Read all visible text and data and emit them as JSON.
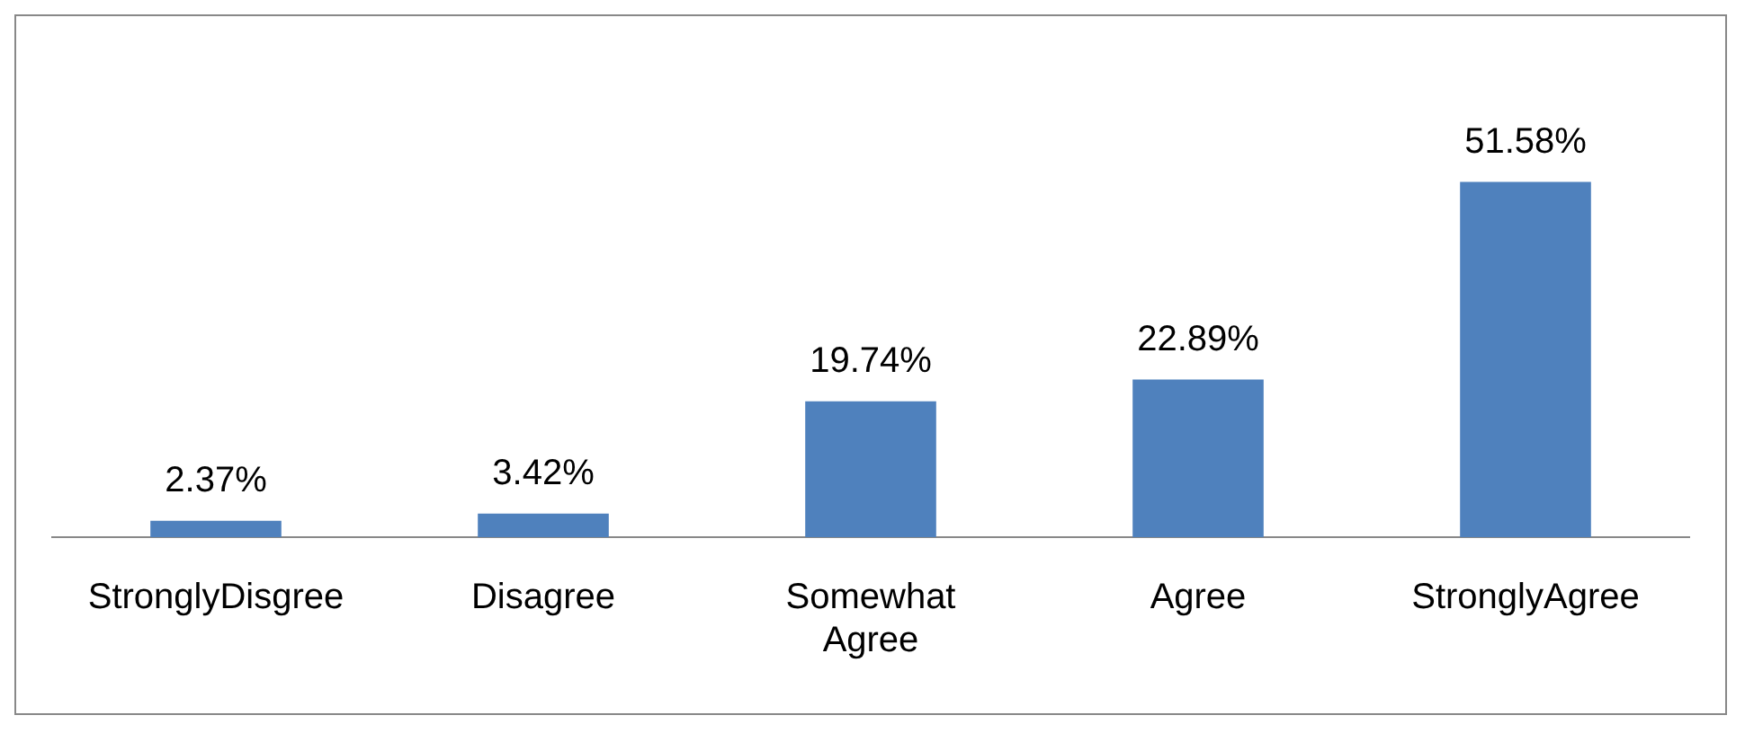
{
  "chart_data": {
    "type": "bar",
    "categories": [
      "StronglyDisgree",
      "Disagree",
      "Somewhat Agree",
      "Agree",
      "StronglyAgree"
    ],
    "values": [
      2.37,
      3.42,
      19.74,
      22.89,
      51.58
    ],
    "value_labels": [
      "2.37%",
      "3.42%",
      "19.74%",
      "22.89%",
      "51.58%"
    ],
    "color": "#4f81bd",
    "grid": false,
    "legend": false
  }
}
